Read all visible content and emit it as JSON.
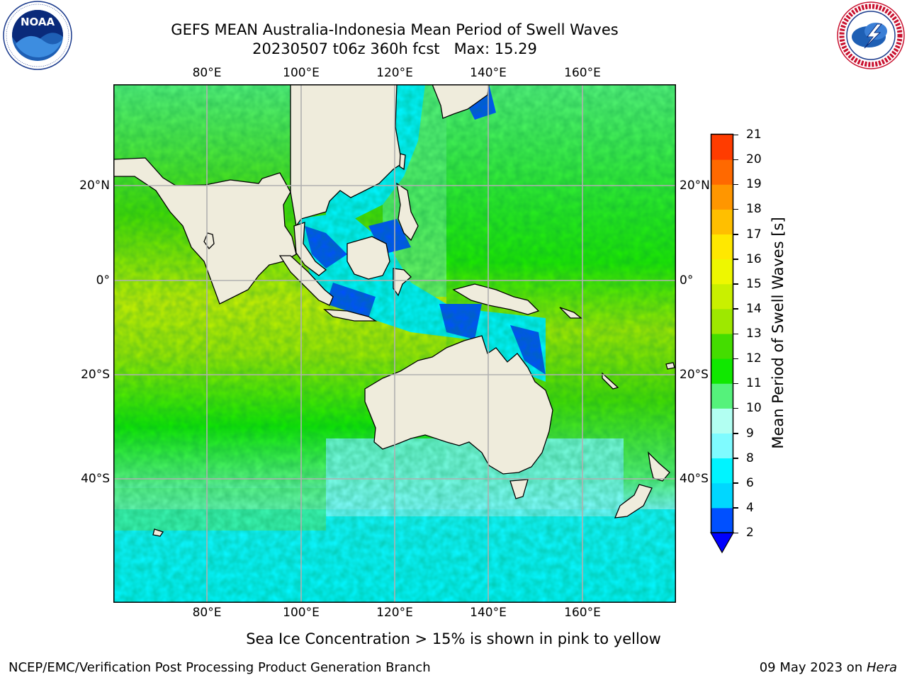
{
  "title": {
    "line1": "GEFS MEAN Australia-Indonesia Mean Period of Swell Waves",
    "line2": "20230507 t06z 360h fcst   Max: 15.29"
  },
  "logos": {
    "left": {
      "icon": "noaa-logo",
      "text": "NOAA",
      "ring_text": "NATIONAL OCEANIC AND ATMOSPHERIC ADMINISTRATION · U.S. DEPARTMENT OF COMMERCE"
    },
    "right": {
      "icon": "nws-logo",
      "ring_text": "NATIONAL WEATHER SERVICE"
    }
  },
  "map": {
    "lon_ticks": [
      "80°E",
      "100°E",
      "120°E",
      "140°E",
      "160°E"
    ],
    "lat_ticks": [
      "20°N",
      "0°",
      "20°S",
      "40°S"
    ],
    "land_color": "#efecdc",
    "grid_color": "#b0b0b0"
  },
  "colorbar": {
    "label": "Mean Period of Swell Waves [s]",
    "levels": [
      "2",
      "4",
      "6",
      "8",
      "9",
      "10",
      "11",
      "12",
      "13",
      "14",
      "15",
      "16",
      "17",
      "18",
      "19",
      "20",
      "21"
    ],
    "colors": [
      "#0050ff",
      "#00d7ff",
      "#00f4ff",
      "#7ffbff",
      "#b2fff2",
      "#55f27b",
      "#10e800",
      "#44dd00",
      "#9ee800",
      "#c9f000",
      "#eef700",
      "#ffe800",
      "#ffbf00",
      "#ff9600",
      "#ff6900",
      "#ff3c00",
      "#ff0000"
    ],
    "under_color": "#0000ff",
    "extend": "min"
  },
  "note": "Sea Ice Concentration > 15% is shown in pink to yellow",
  "footer": {
    "left": "NCEP/EMC/Verification Post Processing Product Generation Branch",
    "right_date": "09 May 2023 on ",
    "right_host": "Hera"
  }
}
